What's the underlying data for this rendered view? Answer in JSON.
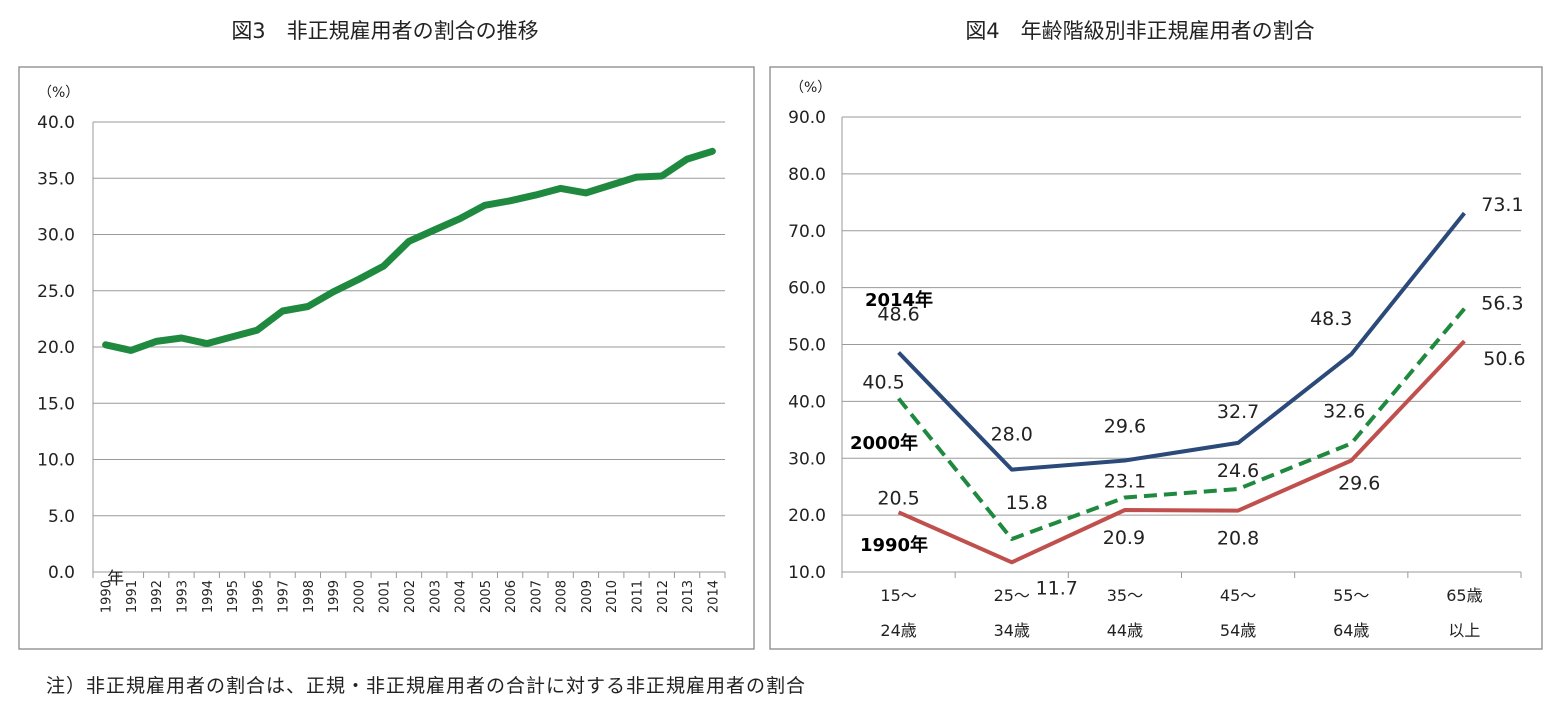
{
  "note": "注）非正規雇用者の割合は、正規・非正規雇用者の合計に対する非正規雇用者の割合",
  "chart_data": [
    {
      "type": "line",
      "title": "図3　非正規雇用者の割合の推移",
      "unit_label": "（%）",
      "x_suffix": "年",
      "x": [
        "1990",
        "1991",
        "1992",
        "1993",
        "1994",
        "1995",
        "1996",
        "1997",
        "1998",
        "1999",
        "2000",
        "2001",
        "2002",
        "2003",
        "2004",
        "2005",
        "2006",
        "2007",
        "2008",
        "2009",
        "2010",
        "2011",
        "2012",
        "2013",
        "2014"
      ],
      "ylim": [
        0,
        40
      ],
      "yticks": [
        "0.0",
        "5.0",
        "10.0",
        "15.0",
        "20.0",
        "25.0",
        "30.0",
        "35.0",
        "40.0"
      ],
      "grid": true,
      "series": [
        {
          "values": [
            20.2,
            19.7,
            20.5,
            20.8,
            20.3,
            20.9,
            21.5,
            23.2,
            23.6,
            24.9,
            26.0,
            27.2,
            29.4,
            30.4,
            31.4,
            32.6,
            33.0,
            33.5,
            34.1,
            33.7,
            34.4,
            35.1,
            35.2,
            36.7,
            37.4
          ],
          "color": "#1f8a3f"
        }
      ]
    },
    {
      "type": "line",
      "title": "図4　年齢階級別非正規雇用者の割合",
      "unit_label": "（%）",
      "categories": [
        [
          "15～",
          "24歳"
        ],
        [
          "25～",
          "34歳"
        ],
        [
          "35～",
          "44歳"
        ],
        [
          "45～",
          "54歳"
        ],
        [
          "55～",
          "64歳"
        ],
        [
          "65歳",
          "以上"
        ]
      ],
      "ylim": [
        10,
        90
      ],
      "yticks": [
        "10.0",
        "20.0",
        "30.0",
        "40.0",
        "50.0",
        "60.0",
        "70.0",
        "80.0",
        "90.0"
      ],
      "grid": true,
      "series": [
        {
          "name": "2014年",
          "values": [
            48.6,
            28.0,
            29.6,
            32.7,
            48.3,
            73.1
          ],
          "labels": [
            "48.6",
            "28.0",
            "29.6",
            "32.7",
            "48.3",
            "73.1"
          ],
          "color": "#2b4a7a",
          "dash": false
        },
        {
          "name": "2000年",
          "values": [
            40.5,
            15.8,
            23.1,
            24.6,
            32.6,
            56.3
          ],
          "labels": [
            "40.5",
            "15.8",
            "23.1",
            "24.6",
            "32.6",
            "56.3"
          ],
          "color": "#1f8a3f",
          "dash": true
        },
        {
          "name": "1990年",
          "values": [
            20.5,
            11.7,
            20.9,
            20.8,
            29.6,
            50.6
          ],
          "labels": [
            "20.5",
            "11.7",
            "20.9",
            "20.8",
            "29.6",
            "50.6"
          ],
          "color": "#c0504d",
          "dash": false
        }
      ]
    }
  ]
}
